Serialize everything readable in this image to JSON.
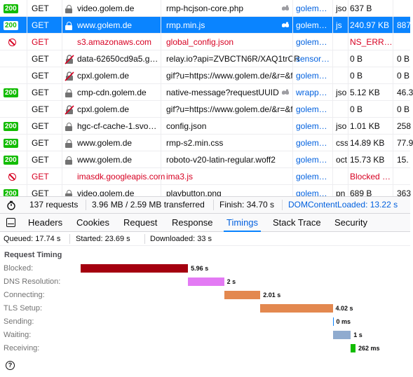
{
  "requests": [
    {
      "status": "200",
      "status_kind": "ok",
      "method": "GET",
      "domain_icon": "lock-icon",
      "domain": "video.golem.de",
      "file": "rmp-hcjson-core.php",
      "tracker": true,
      "cause": "golem…",
      "type": "jso",
      "size": "637 B",
      "extra": "",
      "selected": false,
      "error": false
    },
    {
      "status": "200",
      "status_kind": "ok",
      "method": "GET",
      "domain_icon": "lock-icon",
      "domain": "www.golem.de",
      "file": "rmp.min.js",
      "tracker": true,
      "cause": "golem…",
      "type": "js",
      "size": "240.97 KB",
      "extra": "887",
      "selected": true,
      "error": false
    },
    {
      "status": "",
      "status_kind": "blocked",
      "method": "GET",
      "domain_icon": "none",
      "domain": "s3.amazonaws.com",
      "file": "global_config.json",
      "tracker": false,
      "cause": "golem…",
      "type": "",
      "size": "NS_ERR…",
      "extra": "",
      "selected": false,
      "error": true
    },
    {
      "status": "",
      "status_kind": "none",
      "method": "GET",
      "domain_icon": "insecure-icon",
      "domain": "data-62650cd9a5.g…",
      "file": "relay.io?api=ZVBCTN6R/XAQ1trCR",
      "tracker": false,
      "cause": "sensor…",
      "type": "",
      "size": "0 B",
      "extra": "0 B",
      "selected": false,
      "error": false
    },
    {
      "status": "",
      "status_kind": "none",
      "method": "GET",
      "domain_icon": "insecure-icon",
      "domain": "cpxl.golem.de",
      "file": "gif?u=https://www.golem.de/&r=&f",
      "tracker": false,
      "cause": "golem…",
      "type": "",
      "size": "0 B",
      "extra": "0 B",
      "selected": false,
      "error": false
    },
    {
      "status": "200",
      "status_kind": "ok",
      "method": "GET",
      "domain_icon": "lock-icon",
      "domain": "cmp-cdn.golem.de",
      "file": "native-message?requestUUID",
      "tracker": true,
      "cause": "wrapp…",
      "type": "jso",
      "size": "5.12 KB",
      "extra": "46.3",
      "selected": false,
      "error": false
    },
    {
      "status": "",
      "status_kind": "none",
      "method": "GET",
      "domain_icon": "insecure-icon",
      "domain": "cpxl.golem.de",
      "file": "gif?u=https://www.golem.de/&r=&f",
      "tracker": false,
      "cause": "golem…",
      "type": "",
      "size": "0 B",
      "extra": "0 B",
      "selected": false,
      "error": false
    },
    {
      "status": "200",
      "status_kind": "ok",
      "method": "GET",
      "domain_icon": "lock-icon",
      "domain": "hgc-cf-cache-1.svo…",
      "file": "config.json",
      "tracker": false,
      "cause": "golem…",
      "type": "jso",
      "size": "1.01 KB",
      "extra": "258",
      "selected": false,
      "error": false
    },
    {
      "status": "200",
      "status_kind": "ok",
      "method": "GET",
      "domain_icon": "lock-icon",
      "domain": "www.golem.de",
      "file": "rmp-s2.min.css",
      "tracker": false,
      "cause": "golem…",
      "type": "css",
      "size": "14.89 KB",
      "extra": "77.9",
      "selected": false,
      "error": false
    },
    {
      "status": "200",
      "status_kind": "ok",
      "method": "GET",
      "domain_icon": "lock-icon",
      "domain": "www.golem.de",
      "file": "roboto-v20-latin-regular.woff2",
      "tracker": false,
      "cause": "golem…",
      "type": "oct",
      "size": "15.73 KB",
      "extra": "15.",
      "selected": false,
      "error": false
    },
    {
      "status": "",
      "status_kind": "blocked",
      "method": "GET",
      "domain_icon": "none",
      "domain": "imasdk.googleapis.com",
      "file": "ima3.js",
      "tracker": false,
      "cause": "golem…",
      "type": "",
      "size": "Blocked …",
      "extra": "",
      "selected": false,
      "error": true
    },
    {
      "status": "200",
      "status_kind": "ok",
      "method": "GET",
      "domain_icon": "lock-icon",
      "domain": "video.golem.de",
      "file": "playbutton.png",
      "tracker": false,
      "cause": "golem…",
      "type": "pn",
      "size": "689 B",
      "extra": "363",
      "selected": false,
      "error": false
    }
  ],
  "summary": {
    "requests": "137 requests",
    "transferred": "3.96 MB / 2.59 MB transferred",
    "finish": "Finish: 34.70 s",
    "dom_loaded": "DOMContentLoaded: 13.22 s"
  },
  "tabs": [
    {
      "label": "Headers",
      "active": false
    },
    {
      "label": "Cookies",
      "active": false
    },
    {
      "label": "Request",
      "active": false
    },
    {
      "label": "Response",
      "active": false
    },
    {
      "label": "Timings",
      "active": true
    },
    {
      "label": "Stack Trace",
      "active": false
    },
    {
      "label": "Security",
      "active": false
    }
  ],
  "timing_info": {
    "queued": "Queued: 17.74 s",
    "started": "Started: 23.69 s",
    "downloaded": "Downloaded: 33 s"
  },
  "timings": {
    "title": "Request Timing",
    "rows": [
      {
        "label": "Blocked:",
        "duration": "5.96 s",
        "seconds": 5.96,
        "color": "#a4000f"
      },
      {
        "label": "DNS Resolution:",
        "duration": "2 s",
        "seconds": 2.0,
        "color": "#e37af4"
      },
      {
        "label": "Connecting:",
        "duration": "2.01 s",
        "seconds": 2.01,
        "color": "#e3884f"
      },
      {
        "label": "TLS Setup:",
        "duration": "4.02 s",
        "seconds": 4.02,
        "color": "#e3884f"
      },
      {
        "label": "Sending:",
        "duration": "0 ms",
        "seconds": 0.0,
        "color": "#0a84ff"
      },
      {
        "label": "Waiting:",
        "duration": "1 s",
        "seconds": 1.0,
        "color": "#8fabcf"
      },
      {
        "label": "Receiving:",
        "duration": "262 ms",
        "seconds": 0.262,
        "color": "#12bc00"
      }
    ]
  },
  "colors": {
    "accent": "#0a84ff",
    "error": "#d70022",
    "ok_badge": "#12bc00",
    "link": "#0060df"
  }
}
